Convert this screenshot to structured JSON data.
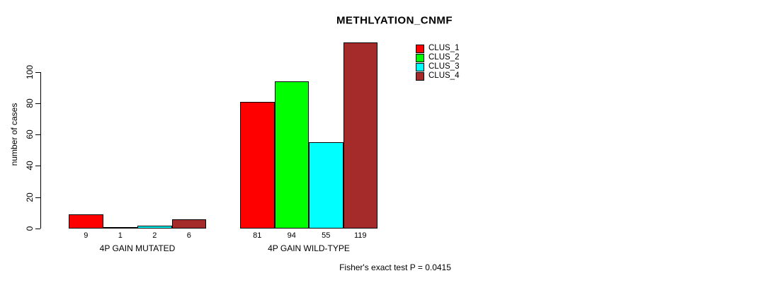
{
  "chart_data": {
    "type": "bar",
    "title": "METHLYATION_CNMF",
    "ylabel": "number of cases",
    "xlabel": "",
    "yticks": [
      0,
      20,
      40,
      60,
      80,
      100
    ],
    "ylim": [
      0,
      119
    ],
    "grid": false,
    "legend_position": "top-right",
    "series": [
      {
        "name": "CLUS_1",
        "color": "#FF0000"
      },
      {
        "name": "CLUS_2",
        "color": "#00FF00"
      },
      {
        "name": "CLUS_3",
        "color": "#00FFFF"
      },
      {
        "name": "CLUS_4",
        "color": "#A52A2A"
      }
    ],
    "groups": [
      {
        "label": "4P GAIN MUTATED",
        "values": [
          9,
          1,
          2,
          6
        ]
      },
      {
        "label": "4P GAIN WILD-TYPE",
        "values": [
          81,
          94,
          55,
          119
        ]
      }
    ],
    "annotation": "Fisher's exact test P = 0.0415"
  }
}
